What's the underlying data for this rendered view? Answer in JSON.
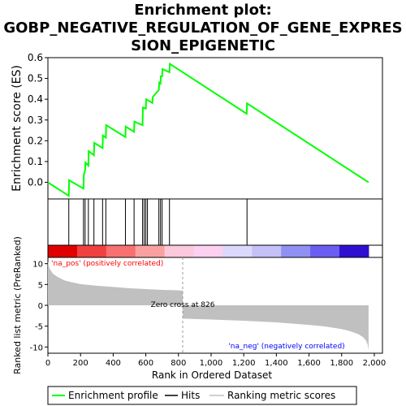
{
  "title_lines": [
    "Enrichment plot:",
    "GOBP_NEGATIVE_REGULATION_OF_GENE_EXPRES",
    "SION_EPIGENETIC"
  ],
  "colors": {
    "es_line": "#00ff00",
    "hits": "#000000",
    "metric_fill": "#c0c0c0",
    "pos_label": "#ff0000",
    "neg_label": "#0000ff"
  },
  "chart_data": {
    "type": "line",
    "es_panel": {
      "ylabel": "Enrichment score (ES)",
      "ylim": [
        -0.08,
        0.6
      ],
      "yticks": [
        0.0,
        0.1,
        0.2,
        0.3,
        0.4,
        0.5,
        0.6
      ],
      "ytick_labels": [
        "0.0",
        "0.1",
        "0.2",
        "0.3",
        "0.4",
        "0.5",
        "0.6"
      ],
      "series": [
        {
          "name": "Enrichment profile",
          "x": [
            0,
            128,
            130,
            218,
            220,
            228,
            230,
            248,
            250,
            282,
            284,
            335,
            337,
            355,
            357,
            475,
            477,
            528,
            530,
            580,
            582,
            600,
            602,
            640,
            642,
            680,
            682,
            690,
            692,
            700,
            702,
            745,
            747,
            1218,
            1220,
            1965
          ],
          "y": [
            0.0,
            -0.065,
            0.01,
            -0.03,
            0.035,
            0.058,
            0.095,
            0.08,
            0.15,
            0.13,
            0.19,
            0.165,
            0.225,
            0.215,
            0.275,
            0.218,
            0.268,
            0.243,
            0.292,
            0.275,
            0.36,
            0.355,
            0.4,
            0.382,
            0.41,
            0.445,
            0.48,
            0.475,
            0.51,
            0.51,
            0.545,
            0.53,
            0.57,
            0.33,
            0.38,
            0.0
          ]
        }
      ]
    },
    "hits_panel": {
      "hits": [
        128,
        218,
        228,
        248,
        282,
        335,
        355,
        475,
        528,
        580,
        590,
        600,
        610,
        680,
        690,
        700,
        745,
        1220
      ]
    },
    "metric_panel": {
      "ylabel": "Ranked list metric (PreRanked)",
      "ylim": [
        -11.5,
        11.5
      ],
      "yticks": [
        -10,
        -5,
        0,
        5,
        10
      ],
      "ytick_labels": [
        "-10",
        "-5",
        "0",
        "5",
        "10"
      ],
      "curve_x": [
        0,
        10,
        30,
        60,
        100,
        150,
        200,
        300,
        400,
        500,
        600,
        700,
        800,
        826,
        827,
        900,
        1000,
        1200,
        1400,
        1600,
        1700,
        1800,
        1850,
        1900,
        1930,
        1950,
        1960,
        1965
      ],
      "curve_y": [
        10.5,
        8.8,
        7.6,
        6.8,
        6.0,
        5.5,
        5.1,
        4.7,
        4.4,
        4.1,
        3.9,
        3.7,
        3.6,
        3.5,
        -3.2,
        -3.3,
        -3.4,
        -3.7,
        -4.1,
        -4.7,
        -5.1,
        -5.7,
        -6.2,
        -6.9,
        -7.6,
        -8.5,
        -9.5,
        -10.8
      ],
      "crossing": 826,
      "crossing_label": "Zero cross at 826",
      "pos_label": "'na_pos' (positively correlated)",
      "neg_label": "'na_neg' (negatively correlated)"
    },
    "xlabel": "Rank in Ordered Dataset",
    "xlim": [
      0,
      2050
    ],
    "xticks": [
      0,
      200,
      400,
      600,
      800,
      1000,
      1200,
      1400,
      1600,
      1800,
      2000
    ],
    "xtick_labels": [
      "0",
      "200",
      "400",
      "600",
      "800",
      "1,000",
      "1,200",
      "1,400",
      "1,600",
      "1,800",
      "2,000"
    ],
    "n_genes": 1965,
    "heatmap_colors": [
      "#e00000",
      "#f04040",
      "#f87070",
      "#fba0a0",
      "#fcc8dc",
      "#fbd0f0",
      "#dcd8fb",
      "#c4c0f8",
      "#9090f4",
      "#6a5ef0",
      "#3010d0"
    ],
    "legend": {
      "entries": [
        {
          "name": "Enrichment profile",
          "swatch_color": "#00ff00"
        },
        {
          "name": "Hits",
          "swatch_color": "#000000"
        },
        {
          "name": "Ranking metric scores",
          "swatch_color": "#c0c0c0"
        }
      ]
    }
  }
}
